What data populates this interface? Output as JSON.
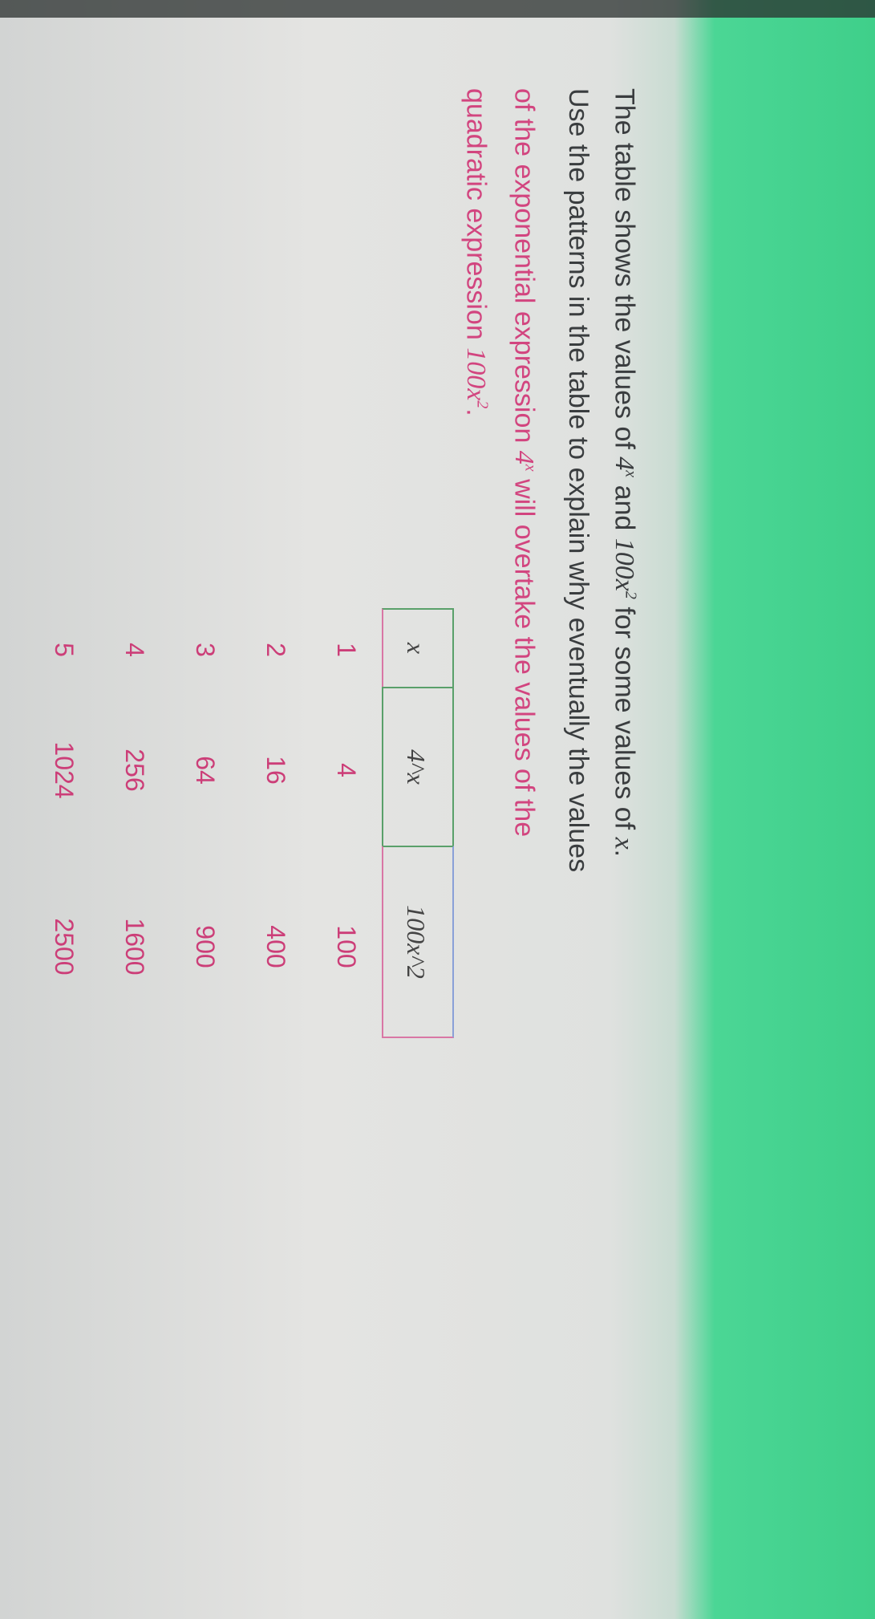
{
  "question": {
    "line1_a": "The table shows the values of ",
    "line1_b": " and ",
    "line1_c": " for some values of ",
    "line1_d": ".",
    "expr_exp_base": "4",
    "expr_exp_power": "x",
    "expr_quad_base": "100x",
    "expr_quad_power": "2",
    "var": "x",
    "line2": "Use the patterns in the table to explain why eventually the values",
    "line3_a": "of the exponential expression ",
    "line3_b": " will overtake the values of the",
    "line4_a": "quadratic expression ",
    "line4_b": "."
  },
  "table": {
    "headers": [
      "x",
      "4^x",
      "100x^2"
    ],
    "rows": [
      [
        "1",
        "4",
        "100"
      ],
      [
        "2",
        "16",
        "400"
      ],
      [
        "3",
        "64",
        "900"
      ],
      [
        "4",
        "256",
        "1600"
      ],
      [
        "5",
        "1024",
        "2500"
      ]
    ]
  },
  "colors": {
    "accent_green": "#45d390",
    "text_pink": "#d2457f"
  }
}
